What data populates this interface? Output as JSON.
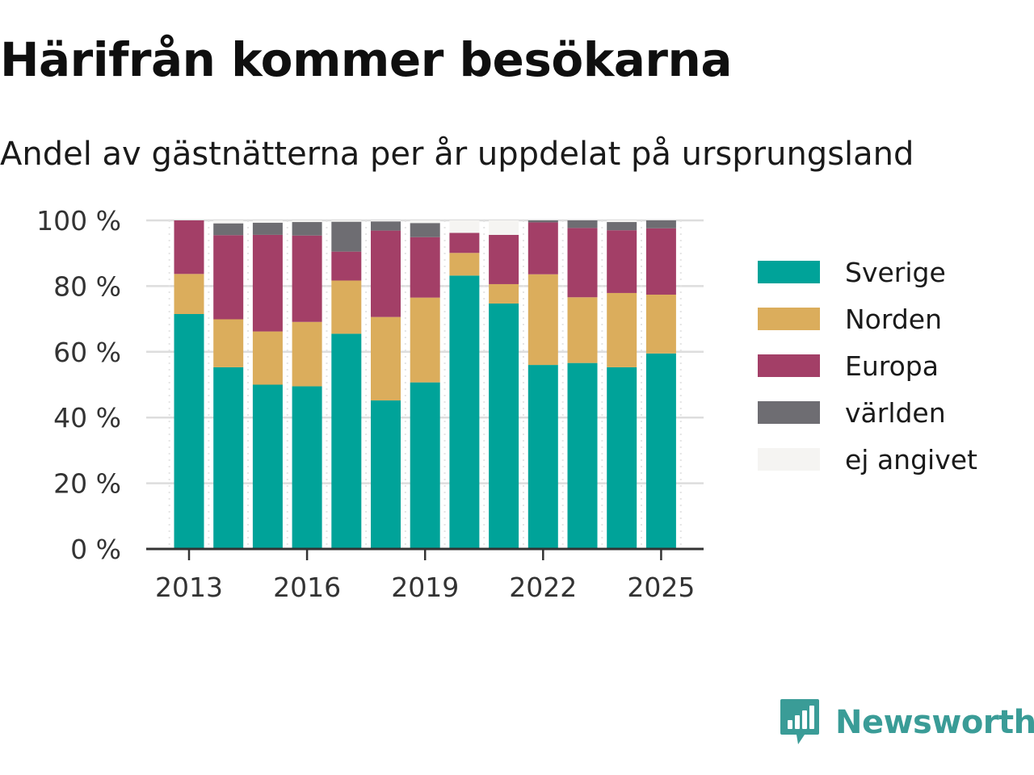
{
  "header": {
    "title": "Härifrån kommer besökarna",
    "subtitle": "Andel av gästnätterna per år uppdelat på ursprungsland"
  },
  "brand": {
    "name": "Newsworthy",
    "color": "#3a9c97"
  },
  "legend": [
    {
      "label": "Sverige",
      "color": "#00a399"
    },
    {
      "label": "Norden",
      "color": "#dbad5c"
    },
    {
      "label": "Europa",
      "color": "#a33f67"
    },
    {
      "label": "världen",
      "color": "#6e6d72"
    },
    {
      "label": "ej angivet",
      "color": "#f5f4f2"
    }
  ],
  "chart_data": {
    "type": "bar",
    "stacked": true,
    "title": "Härifrån kommer besökarna",
    "subtitle": "Andel av gästnätterna per år uppdelat på ursprungsland",
    "xlabel": "",
    "ylabel": "",
    "categories": [
      2013,
      2014,
      2015,
      2016,
      2017,
      2018,
      2019,
      2020,
      2021,
      2022,
      2023,
      2024,
      2025
    ],
    "x_tick_labels": [
      "2013",
      "2016",
      "2019",
      "2022",
      "2025"
    ],
    "y_tick_labels": [
      "0 %",
      "20 %",
      "40 %",
      "60 %",
      "80 %",
      "100 %"
    ],
    "ylim": [
      0,
      100
    ],
    "grid": true,
    "legend_position": "right",
    "series": [
      {
        "name": "Sverige",
        "color": "#00a399",
        "values": [
          71.5,
          55.3,
          50,
          49.5,
          65.5,
          45.2,
          50.7,
          83.2,
          74.7,
          56,
          56.6,
          55.3,
          59.5
        ]
      },
      {
        "name": "Norden",
        "color": "#dbad5c",
        "values": [
          12.2,
          14.6,
          16.2,
          19.6,
          16.2,
          25.4,
          25.8,
          6.9,
          5.9,
          27.6,
          20,
          22.6,
          17.9
        ]
      },
      {
        "name": "Europa",
        "color": "#a33f67",
        "values": [
          16.3,
          25.6,
          29.4,
          26.3,
          8.8,
          26.3,
          18.4,
          6.1,
          15,
          15.8,
          21.1,
          19.1,
          20.2
        ]
      },
      {
        "name": "världen",
        "color": "#6e6d72",
        "values": [
          0,
          3.6,
          3.7,
          4.1,
          9.1,
          2.8,
          4.3,
          0,
          0,
          0.6,
          2.3,
          2.5,
          2.4
        ]
      },
      {
        "name": "ej angivet",
        "color": "#f5f4f2",
        "values": [
          0,
          0.9,
          0.7,
          0.5,
          0.4,
          0.3,
          0.8,
          3.8,
          4.4,
          0,
          0,
          0.5,
          0
        ]
      }
    ]
  }
}
